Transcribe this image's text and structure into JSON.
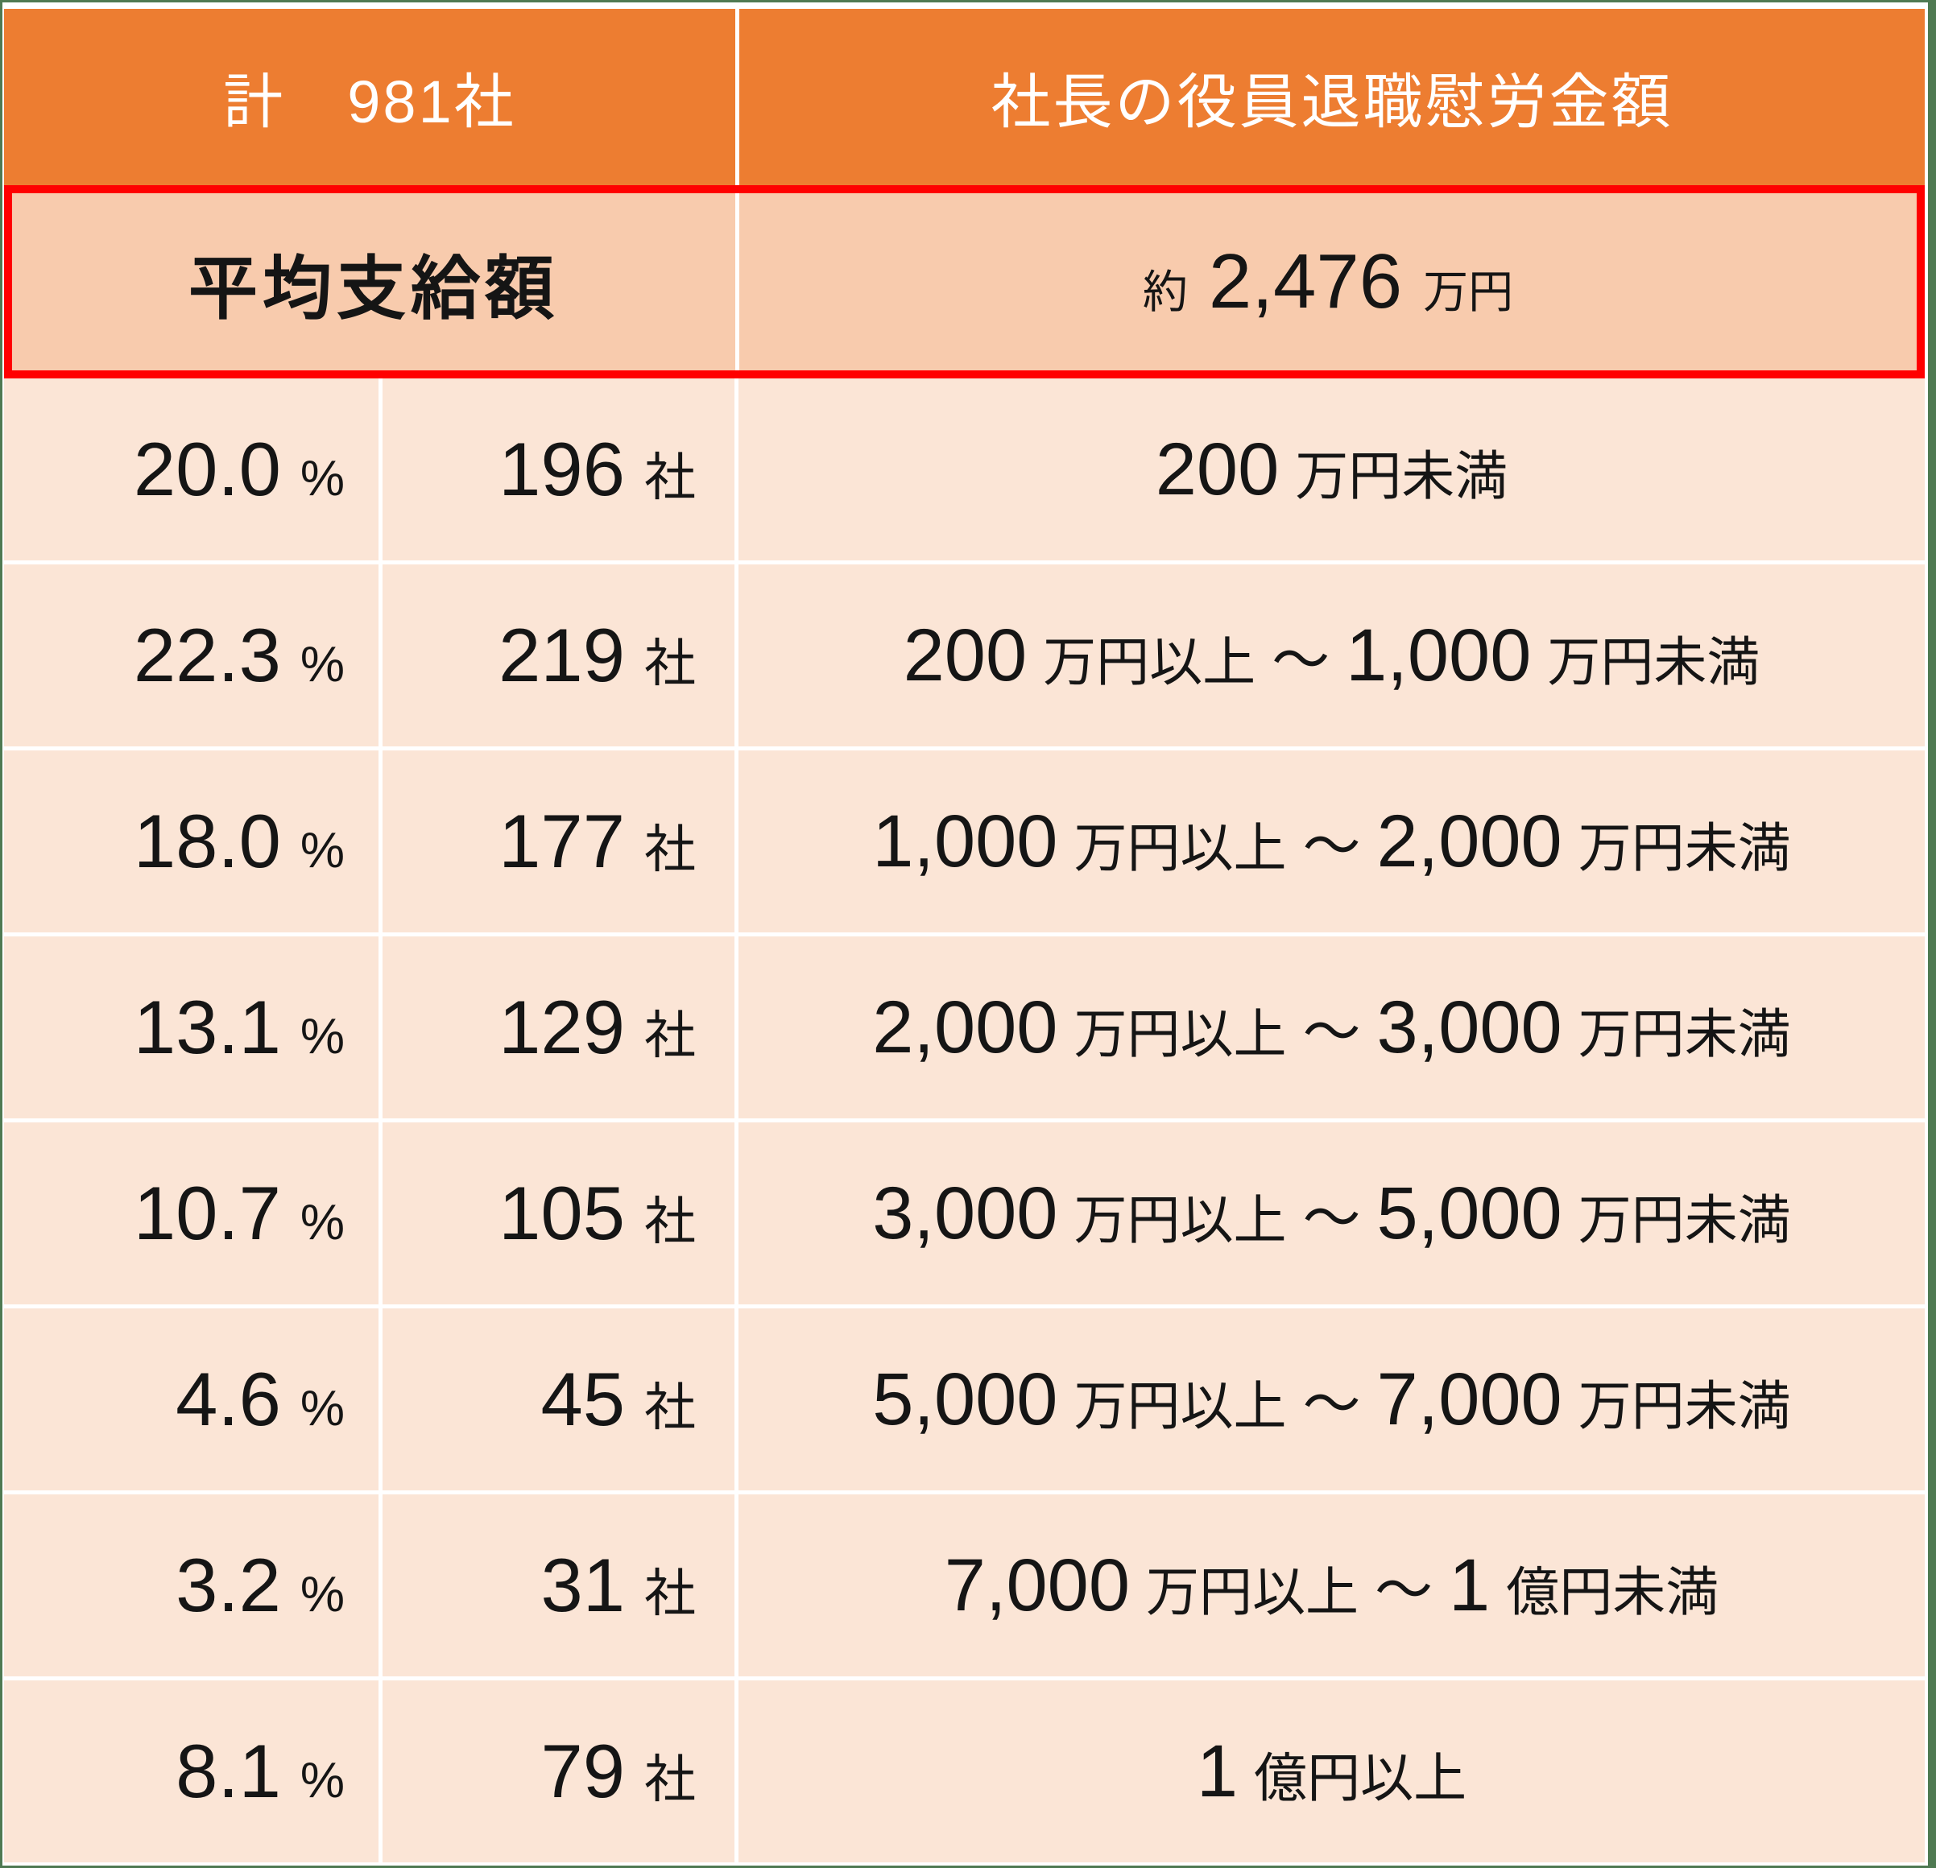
{
  "header": {
    "total_label": "計　981社",
    "amount_label": "社長の役員退職慰労金額"
  },
  "average_row": {
    "label": "平均支給額",
    "value_prefix": "約",
    "value_number": "2,476",
    "value_unit": "万円"
  },
  "rows": [
    {
      "percent": "20.0",
      "percent_unit": "%",
      "count": "196",
      "count_unit": "社",
      "range": [
        {
          "k": "num",
          "v": "200"
        },
        {
          "k": "jp",
          "v": "万円未満"
        }
      ]
    },
    {
      "percent": "22.3",
      "percent_unit": "%",
      "count": "219",
      "count_unit": "社",
      "range": [
        {
          "k": "num",
          "v": "200"
        },
        {
          "k": "jp",
          "v": "万円以上"
        },
        {
          "k": "tl",
          "v": "～"
        },
        {
          "k": "num",
          "v": "1,000"
        },
        {
          "k": "jp",
          "v": "万円未満"
        }
      ]
    },
    {
      "percent": "18.0",
      "percent_unit": "%",
      "count": "177",
      "count_unit": "社",
      "range": [
        {
          "k": "num",
          "v": "1,000"
        },
        {
          "k": "jp",
          "v": "万円以上"
        },
        {
          "k": "tl",
          "v": "～"
        },
        {
          "k": "num",
          "v": "2,000"
        },
        {
          "k": "jp",
          "v": "万円未満"
        }
      ]
    },
    {
      "percent": "13.1",
      "percent_unit": "%",
      "count": "129",
      "count_unit": "社",
      "range": [
        {
          "k": "num",
          "v": "2,000"
        },
        {
          "k": "jp",
          "v": "万円以上"
        },
        {
          "k": "tl",
          "v": "～"
        },
        {
          "k": "num",
          "v": "3,000"
        },
        {
          "k": "jp",
          "v": "万円未満"
        }
      ]
    },
    {
      "percent": "10.7",
      "percent_unit": "%",
      "count": "105",
      "count_unit": "社",
      "range": [
        {
          "k": "num",
          "v": "3,000"
        },
        {
          "k": "jp",
          "v": "万円以上"
        },
        {
          "k": "tl",
          "v": "～"
        },
        {
          "k": "num",
          "v": "5,000"
        },
        {
          "k": "jp",
          "v": "万円未満"
        }
      ]
    },
    {
      "percent": "4.6",
      "percent_unit": "%",
      "count": "45",
      "count_unit": "社",
      "range": [
        {
          "k": "num",
          "v": "5,000"
        },
        {
          "k": "jp",
          "v": "万円以上"
        },
        {
          "k": "tl",
          "v": "～"
        },
        {
          "k": "num",
          "v": "7,000"
        },
        {
          "k": "jp",
          "v": "万円未満"
        }
      ]
    },
    {
      "percent": "3.2",
      "percent_unit": "%",
      "count": "31",
      "count_unit": "社",
      "range": [
        {
          "k": "num",
          "v": "7,000"
        },
        {
          "k": "jp",
          "v": "万円以上"
        },
        {
          "k": "tl",
          "v": "～"
        },
        {
          "k": "num",
          "v": "1"
        },
        {
          "k": "jp",
          "v": "億円未満"
        }
      ]
    },
    {
      "percent": "8.1",
      "percent_unit": "%",
      "count": "79",
      "count_unit": "社",
      "range": [
        {
          "k": "num",
          "v": "1"
        },
        {
          "k": "jp",
          "v": "億円以上"
        }
      ]
    }
  ],
  "colors": {
    "header_bg": "#ED7D31",
    "header_text": "#FFFFFF",
    "average_bg": "#F8CBAD",
    "data_bg": "#FBE5D6",
    "highlight_border": "#FF0000",
    "gridline": "#FFFFFF",
    "frame": "#4F7A52",
    "text": "#151515"
  }
}
